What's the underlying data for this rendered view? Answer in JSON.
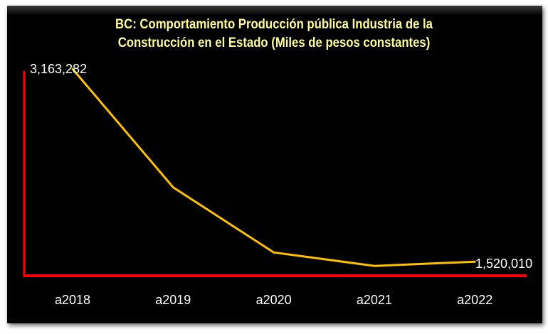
{
  "chart_data": {
    "type": "line",
    "title_line1": "BC: Comportamiento Producción pública Industria de la",
    "title_line2": "Construcción en el Estado (Miles de pesos constantes)",
    "categories": [
      "a2018",
      "a2019",
      "a2020",
      "a2021",
      "a2022"
    ],
    "series": [
      {
        "name": "Producción pública",
        "values": [
          3163282,
          2154000,
          1598500,
          1483800,
          1520010
        ]
      }
    ],
    "data_labels": {
      "first": "3,163,282",
      "last": "1,520,010"
    },
    "xlabel": "",
    "ylabel": "",
    "ylim": [
      1400000,
      3163282
    ],
    "grid": false,
    "colors": {
      "line": "#ffc000",
      "axis": "#ff0000",
      "background": "#000000",
      "title": "#ffff99"
    }
  }
}
